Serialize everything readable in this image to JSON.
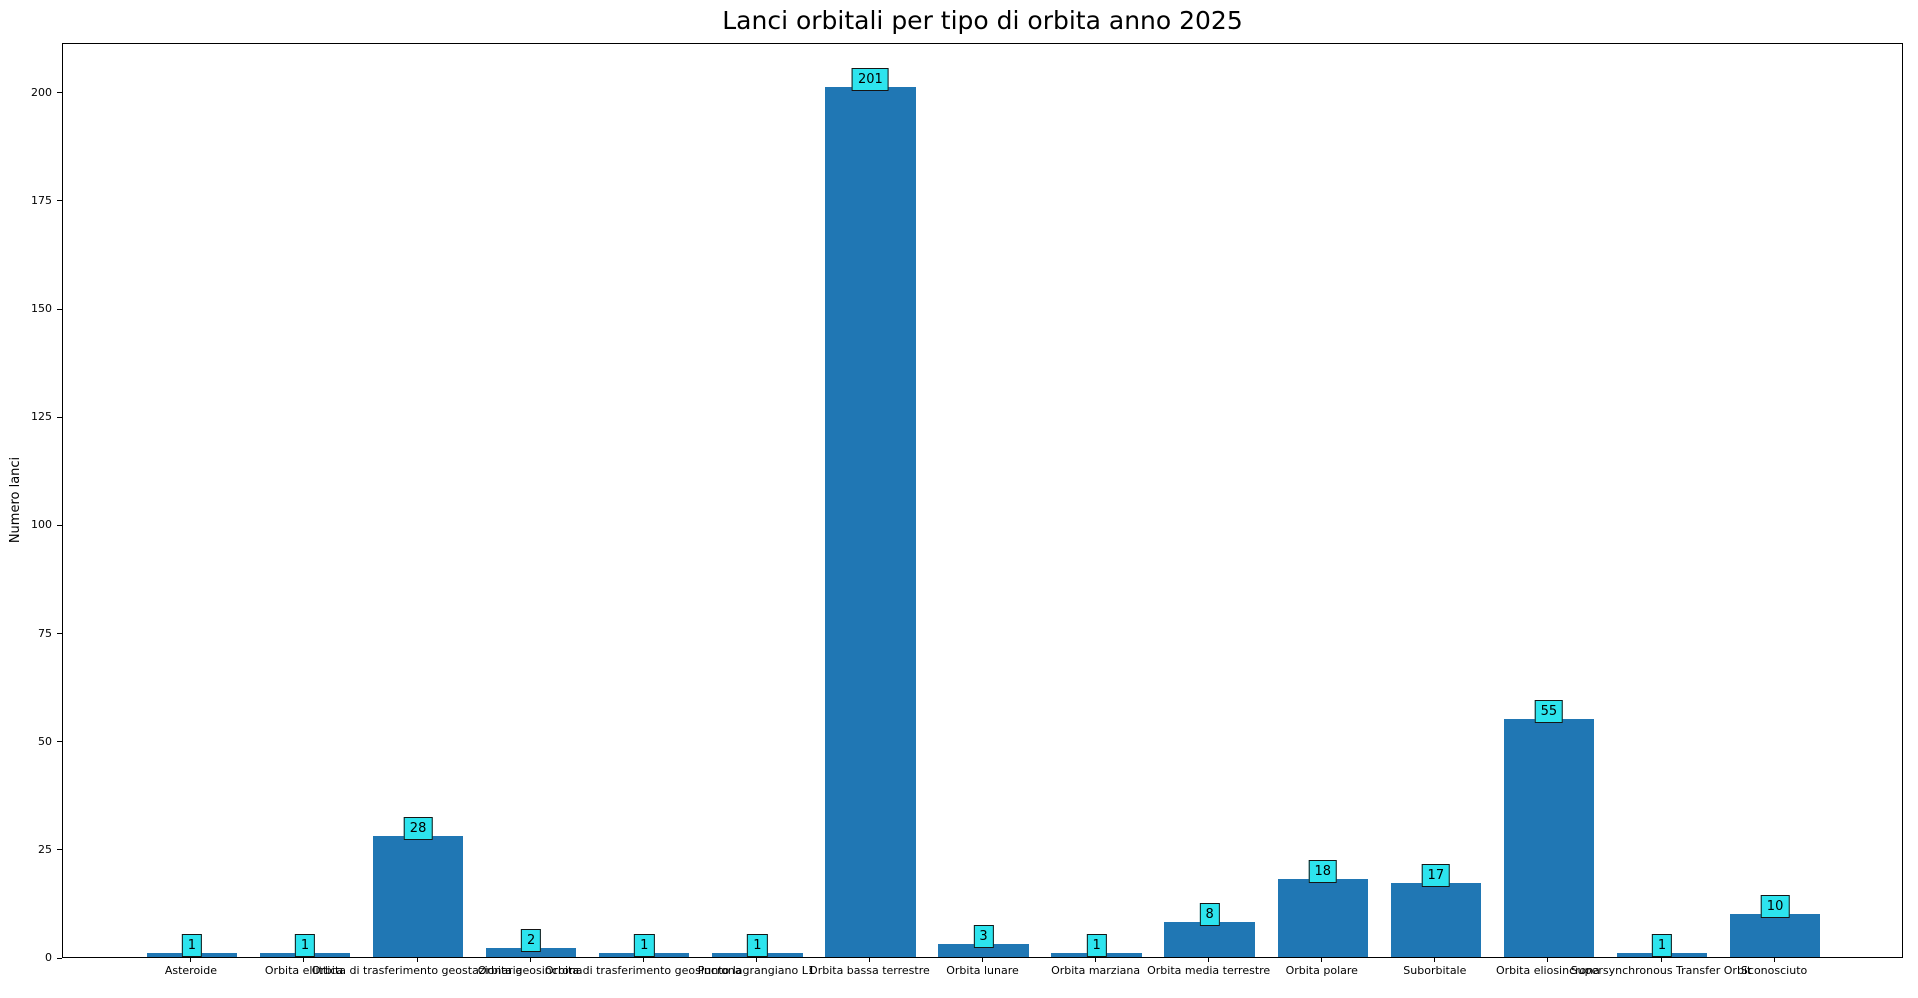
{
  "chart_data": {
    "type": "bar",
    "title": "Lanci orbitali per tipo di orbita anno 2025",
    "xlabel": "",
    "ylabel": "Numero lanci",
    "categories": [
      "Asteroide",
      "Orbita ellittica",
      "Orbita di trasferimento geostazionaria",
      "Orbita geosincrona",
      "Orbita di trasferimento geosincrona",
      "Punto lagrangiano L1",
      "Orbita bassa terrestre",
      "Orbita lunare",
      "Orbita marziana",
      "Orbita media terrestre",
      "Orbita polare",
      "Suborbitale",
      "Orbita eliosincrona",
      "Supersynchronous Transfer Orbit",
      "Sconosciuto"
    ],
    "values": [
      1,
      1,
      28,
      2,
      1,
      1,
      201,
      3,
      1,
      8,
      18,
      17,
      55,
      1,
      10
    ],
    "yticks": [
      0,
      25,
      50,
      75,
      100,
      125,
      150,
      175,
      200
    ],
    "ylim": [
      0,
      211.5
    ],
    "grid": false,
    "legend": false,
    "bar_color": "#2077b4",
    "value_box_color": "#2de4ee",
    "value_box_border": "#151515",
    "axis_color": "#000000"
  }
}
